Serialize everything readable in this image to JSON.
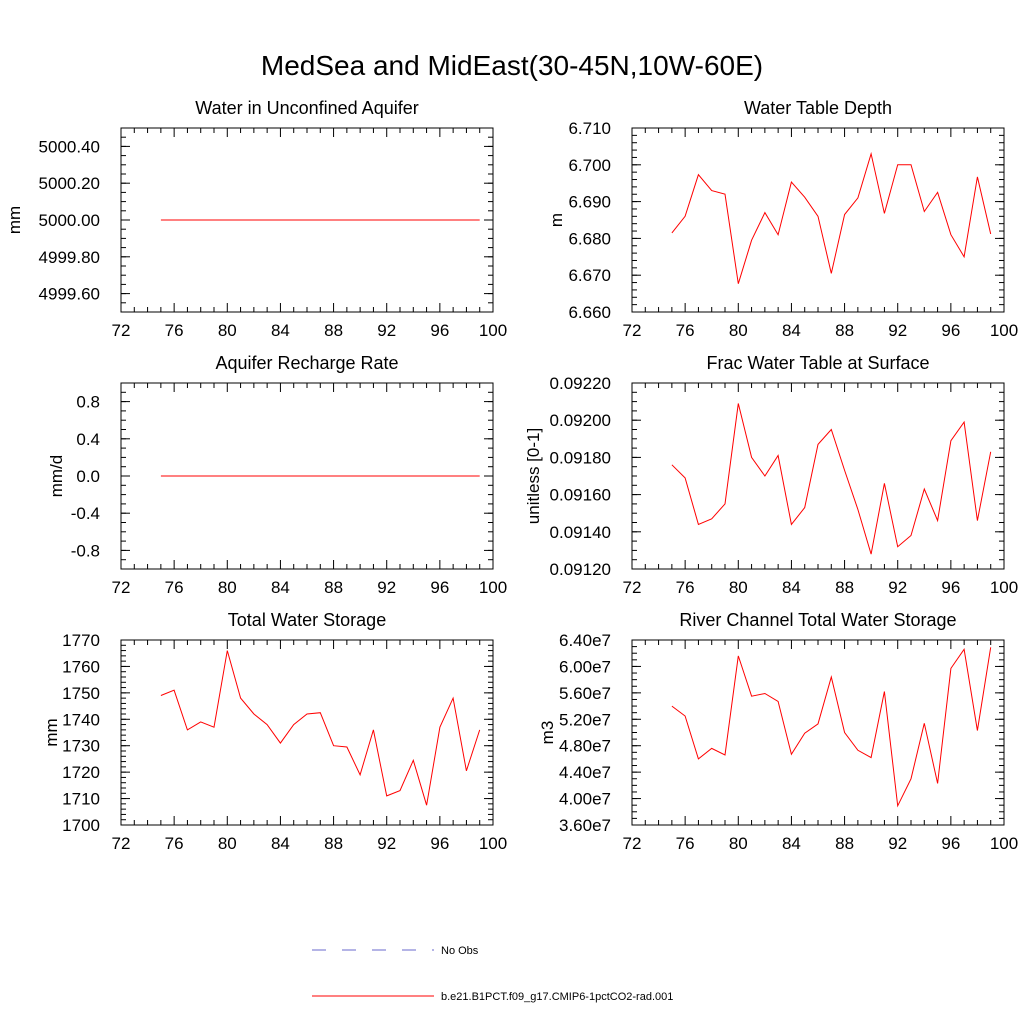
{
  "title": "MedSea and MidEast(30-45N,10W-60E)",
  "colors": {
    "model": "#ff0000",
    "obs": "#6a6acd",
    "axis": "#000000"
  },
  "legend": {
    "obs_label": "No Obs",
    "model_label": "b.e21.B1PCT.f09_g17.CMIP6-1pctCO2-rad.001"
  },
  "chart_data": [
    {
      "type": "line",
      "title": "Water in Unconfined Aquifer",
      "ylabel": "mm",
      "xlim": [
        72,
        100
      ],
      "ylim": [
        4999.5,
        5000.5
      ],
      "xticks": [
        "72",
        "76",
        "80",
        "84",
        "88",
        "92",
        "96",
        "100"
      ],
      "yticks": [
        {
          "v": 4999.6,
          "label": "4999.60"
        },
        {
          "v": 4999.8,
          "label": "4999.80"
        },
        {
          "v": 5000.0,
          "label": "5000.00"
        },
        {
          "v": 5000.2,
          "label": "5000.20"
        },
        {
          "v": 5000.4,
          "label": "5000.40"
        }
      ],
      "yminor": 0.05,
      "x": [
        75,
        76,
        77,
        78,
        79,
        80,
        81,
        82,
        83,
        84,
        85,
        86,
        87,
        88,
        89,
        90,
        91,
        92,
        93,
        94,
        95,
        96,
        97,
        98,
        99
      ],
      "series": [
        {
          "values": [
            5000,
            5000,
            5000,
            5000,
            5000,
            5000,
            5000,
            5000,
            5000,
            5000,
            5000,
            5000,
            5000,
            5000,
            5000,
            5000,
            5000,
            5000,
            5000,
            5000,
            5000,
            5000,
            5000,
            5000,
            5000
          ]
        }
      ]
    },
    {
      "type": "line",
      "title": "Water Table Depth",
      "ylabel": "m",
      "xlim": [
        72,
        100
      ],
      "ylim": [
        6.66,
        6.71
      ],
      "xticks": [
        "72",
        "76",
        "80",
        "84",
        "88",
        "92",
        "96",
        "100"
      ],
      "yticks": [
        {
          "v": 6.66,
          "label": "6.660"
        },
        {
          "v": 6.67,
          "label": "6.670"
        },
        {
          "v": 6.68,
          "label": "6.680"
        },
        {
          "v": 6.69,
          "label": "6.690"
        },
        {
          "v": 6.7,
          "label": "6.700"
        },
        {
          "v": 6.71,
          "label": "6.710"
        }
      ],
      "yminor": 0.002,
      "x": [
        75,
        76,
        77,
        78,
        79,
        80,
        81,
        82,
        83,
        84,
        85,
        86,
        87,
        88,
        89,
        90,
        91,
        92,
        93,
        94,
        95,
        96,
        97,
        98,
        99
      ],
      "series": [
        {
          "values": [
            6.6815,
            6.686,
            6.6973,
            6.693,
            6.692,
            6.6677,
            6.6795,
            6.687,
            6.681,
            6.6953,
            6.6912,
            6.686,
            6.6705,
            6.6865,
            6.691,
            6.703,
            6.6868,
            6.7,
            6.7,
            6.6873,
            6.6925,
            6.681,
            6.675,
            6.6967,
            6.6812
          ]
        }
      ]
    },
    {
      "type": "line",
      "title": "Aquifer Recharge Rate",
      "ylabel": "mm/d",
      "xlim": [
        72,
        100
      ],
      "ylim": [
        -1.0,
        1.0
      ],
      "xticks": [
        "72",
        "76",
        "80",
        "84",
        "88",
        "92",
        "96",
        "100"
      ],
      "yticks": [
        {
          "v": -0.8,
          "label": "-0.8"
        },
        {
          "v": -0.4,
          "label": "-0.4"
        },
        {
          "v": 0.0,
          "label": "0.0"
        },
        {
          "v": 0.4,
          "label": "0.4"
        },
        {
          "v": 0.8,
          "label": "0.8"
        }
      ],
      "yminor": 0.1,
      "x": [
        75,
        76,
        77,
        78,
        79,
        80,
        81,
        82,
        83,
        84,
        85,
        86,
        87,
        88,
        89,
        90,
        91,
        92,
        93,
        94,
        95,
        96,
        97,
        98,
        99
      ],
      "series": [
        {
          "values": [
            0,
            0,
            0,
            0,
            0,
            0,
            0,
            0,
            0,
            0,
            0,
            0,
            0,
            0,
            0,
            0,
            0,
            0,
            0,
            0,
            0,
            0,
            0,
            0,
            0
          ]
        }
      ]
    },
    {
      "type": "line",
      "title": "Frac Water Table at Surface",
      "ylabel": "unitless [0-1]",
      "xlim": [
        72,
        100
      ],
      "ylim": [
        0.0912,
        0.0922
      ],
      "xticks": [
        "72",
        "76",
        "80",
        "84",
        "88",
        "92",
        "96",
        "100"
      ],
      "yticks": [
        {
          "v": 0.0912,
          "label": "0.09120"
        },
        {
          "v": 0.0914,
          "label": "0.09140"
        },
        {
          "v": 0.0916,
          "label": "0.09160"
        },
        {
          "v": 0.0918,
          "label": "0.09180"
        },
        {
          "v": 0.092,
          "label": "0.09200"
        },
        {
          "v": 0.0922,
          "label": "0.09220"
        }
      ],
      "yminor": 5e-05,
      "x": [
        75,
        76,
        77,
        78,
        79,
        80,
        81,
        82,
        83,
        84,
        85,
        86,
        87,
        88,
        89,
        90,
        91,
        92,
        93,
        94,
        95,
        96,
        97,
        98,
        99
      ],
      "series": [
        {
          "values": [
            0.09176,
            0.09169,
            0.09144,
            0.09147,
            0.09155,
            0.09209,
            0.0918,
            0.0917,
            0.09181,
            0.09144,
            0.09153,
            0.09187,
            0.09195,
            0.09173,
            0.09152,
            0.09128,
            0.09166,
            0.09132,
            0.09138,
            0.09163,
            0.09146,
            0.09189,
            0.09199,
            0.09146,
            0.09183
          ]
        }
      ]
    },
    {
      "type": "line",
      "title": "Total Water Storage",
      "ylabel": "mm",
      "xlim": [
        72,
        100
      ],
      "ylim": [
        1700,
        1770
      ],
      "xticks": [
        "72",
        "76",
        "80",
        "84",
        "88",
        "92",
        "96",
        "100"
      ],
      "yticks": [
        {
          "v": 1700,
          "label": "1700"
        },
        {
          "v": 1710,
          "label": "1710"
        },
        {
          "v": 1720,
          "label": "1720"
        },
        {
          "v": 1730,
          "label": "1730"
        },
        {
          "v": 1740,
          "label": "1740"
        },
        {
          "v": 1750,
          "label": "1750"
        },
        {
          "v": 1760,
          "label": "1760"
        },
        {
          "v": 1770,
          "label": "1770"
        }
      ],
      "yminor": 2,
      "x": [
        75,
        76,
        77,
        78,
        79,
        80,
        81,
        82,
        83,
        84,
        85,
        86,
        87,
        88,
        89,
        90,
        91,
        92,
        93,
        94,
        95,
        96,
        97,
        98,
        99
      ],
      "series": [
        {
          "values": [
            1749,
            1751,
            1736,
            1739,
            1737,
            1766,
            1748,
            1742,
            1738,
            1731,
            1738,
            1742,
            1742.5,
            1730,
            1729.5,
            1719,
            1736,
            1711,
            1713,
            1724.5,
            1707.5,
            1737,
            1748,
            1720.5,
            1736
          ]
        }
      ]
    },
    {
      "type": "line",
      "title": "River Channel Total Water Storage",
      "ylabel": "m3",
      "xlim": [
        72,
        100
      ],
      "ylim": [
        36000000.0,
        64000000.0
      ],
      "xticks": [
        "72",
        "76",
        "80",
        "84",
        "88",
        "92",
        "96",
        "100"
      ],
      "yticks": [
        {
          "v": 36000000.0,
          "label": "3.60e7"
        },
        {
          "v": 40000000.0,
          "label": "4.00e7"
        },
        {
          "v": 44000000.0,
          "label": "4.40e7"
        },
        {
          "v": 48000000.0,
          "label": "4.80e7"
        },
        {
          "v": 52000000.0,
          "label": "5.20e7"
        },
        {
          "v": 56000000.0,
          "label": "5.60e7"
        },
        {
          "v": 60000000.0,
          "label": "6.00e7"
        },
        {
          "v": 64000000.0,
          "label": "6.40e7"
        }
      ],
      "yminor": 1000000.0,
      "x": [
        75,
        76,
        77,
        78,
        79,
        80,
        81,
        82,
        83,
        84,
        85,
        86,
        87,
        88,
        89,
        90,
        91,
        92,
        93,
        94,
        95,
        96,
        97,
        98,
        99
      ],
      "series": [
        {
          "values": [
            54000000.0,
            52500000.0,
            46000000.0,
            47600000.0,
            46600000.0,
            61600000.0,
            55500000.0,
            55900000.0,
            54700000.0,
            46700000.0,
            49900000.0,
            51300000.0,
            58400000.0,
            50000000.0,
            47300000.0,
            46200000.0,
            56200000.0,
            38900000.0,
            43000000.0,
            51400000.0,
            42300000.0,
            59700000.0,
            62600000.0,
            50300000.0,
            62900000.0
          ]
        }
      ]
    }
  ]
}
